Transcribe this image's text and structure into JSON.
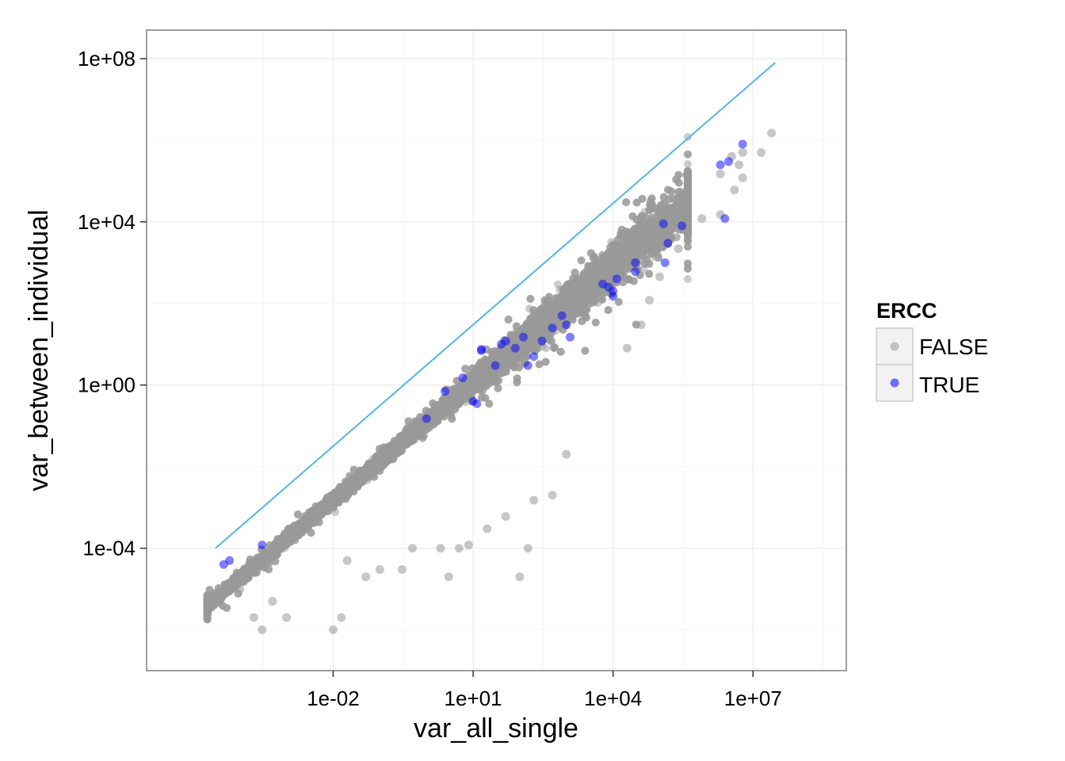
{
  "chart_data": {
    "type": "scatter",
    "xlabel": "var_all_single",
    "ylabel": "var_between_individual",
    "x_scale": "log10",
    "y_scale": "log10",
    "xlim": [
      1e-06,
      1000000000.0
    ],
    "ylim": [
      1e-07,
      500000000.0
    ],
    "x_ticks": [
      "1e-02",
      "1e+01",
      "1e+04",
      "1e+07"
    ],
    "y_ticks": [
      "1e-04",
      "1e+00",
      "1e+04",
      "1e+08"
    ],
    "grid": true,
    "legend": {
      "title": "ERCC",
      "position": "right",
      "entries": [
        {
          "label": "FALSE",
          "color": "#999999"
        },
        {
          "label": "TRUE",
          "color": "#0000ff"
        }
      ]
    },
    "reference_line": {
      "description": "y = x identity line",
      "color": "#56B4E9",
      "x": [
        3e-05,
        30000000.0
      ],
      "y": [
        0.0001,
        80000000.0
      ]
    },
    "background_cloud": {
      "series": "FALSE",
      "approx_points": 16000,
      "trend": "log10(y) ≈ 0.96 × log10(x) − 0.9",
      "x_range": [
        2e-05,
        400000.0
      ]
    },
    "series": [
      {
        "name": "FALSE",
        "color": "#999999",
        "points": [
          [
            25000000.0,
            1500000.0
          ],
          [
            6000000.0,
            500000.0
          ],
          [
            15000000.0,
            500000.0
          ],
          [
            3500000.0,
            400000.0
          ],
          [
            5000000.0,
            250000.0
          ],
          [
            2000000.0,
            150000.0
          ],
          [
            6000000.0,
            120000.0
          ],
          [
            4000000.0,
            60000.0
          ],
          [
            2000000.0,
            15000.0
          ],
          [
            800000.0,
            12000.0
          ],
          [
            250000.0,
            2200.0
          ],
          [
            100000.0,
            450.0
          ],
          [
            60000.0,
            120.0
          ],
          [
            40000.0,
            30
          ],
          [
            20000.0,
            8
          ],
          [
            1000.0,
            0.02
          ],
          [
            500.0,
            0.002
          ],
          [
            200.0,
            0.0015
          ],
          [
            50,
            0.0006
          ],
          [
            20,
            0.0003
          ],
          [
            8,
            0.00012
          ],
          [
            5,
            0.0001
          ],
          [
            2,
            0.0001
          ],
          [
            0.5,
            0.0001
          ],
          [
            150.0,
            0.0001
          ],
          [
            100.0,
            2e-05
          ],
          [
            3,
            2e-05
          ],
          [
            0.3,
            3e-05
          ],
          [
            0.02,
            5e-05
          ],
          [
            0.01,
            1e-06
          ],
          [
            0.0005,
            5e-06
          ],
          [
            0.001,
            2e-06
          ],
          [
            0.0003,
            1e-06
          ],
          [
            0.0001,
            1e-05
          ],
          [
            0.0002,
            2e-06
          ],
          [
            0.05,
            2e-05
          ],
          [
            0.015,
            2e-06
          ],
          [
            0.1,
            3e-05
          ]
        ]
      },
      {
        "name": "TRUE",
        "color": "#0000ff",
        "points": [
          [
            4.5e-05,
            4e-05
          ],
          [
            6e-05,
            5e-05
          ],
          [
            0.0003,
            0.00012
          ],
          [
            1,
            0.15
          ],
          [
            2.5,
            0.7
          ],
          [
            6,
            1.5
          ],
          [
            10,
            0.4
          ],
          [
            12,
            0.35
          ],
          [
            15,
            7
          ],
          [
            15,
            7.5
          ],
          [
            30,
            3
          ],
          [
            40,
            10
          ],
          [
            50,
            12
          ],
          [
            80,
            8
          ],
          [
            120,
            15
          ],
          [
            150,
            3
          ],
          [
            200,
            5
          ],
          [
            300,
            12
          ],
          [
            500,
            25
          ],
          [
            800,
            50
          ],
          [
            1000,
            30
          ],
          [
            1200,
            15
          ],
          [
            6000.0,
            300
          ],
          [
            8000.0,
            250
          ],
          [
            10000.0,
            150
          ],
          [
            10000.0,
            200
          ],
          [
            12000.0,
            400
          ],
          [
            30000.0,
            600
          ],
          [
            30000.0,
            1000
          ],
          [
            120000.0,
            9000
          ],
          [
            130000.0,
            1000
          ],
          [
            150000.0,
            3000
          ],
          [
            300000.0,
            8000
          ],
          [
            2000000.0,
            250000.0
          ],
          [
            2500000.0,
            12000.0
          ],
          [
            3000000.0,
            300000.0
          ],
          [
            6000000.0,
            800000.0
          ]
        ]
      }
    ]
  }
}
